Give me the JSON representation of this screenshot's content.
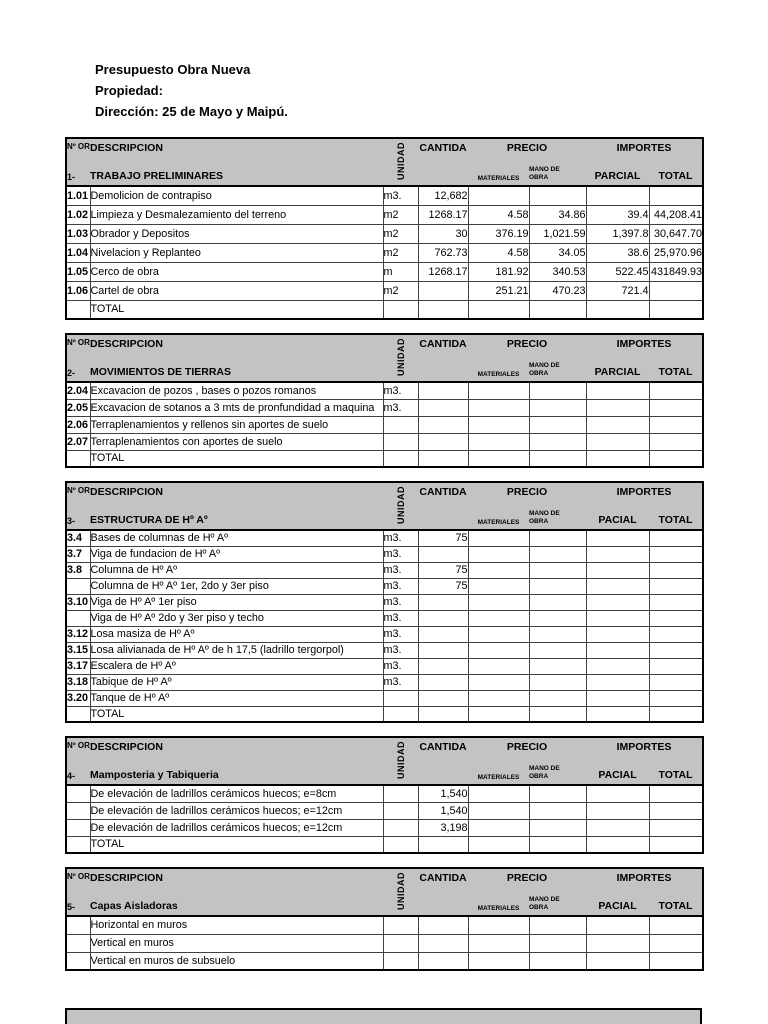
{
  "title_block": {
    "line1": "Presupuesto Obra Nueva",
    "line2": "Propiedad:",
    "line3": "Dirección: 25 de Mayo y Maipú."
  },
  "header_labels": {
    "num_order": "Nº OR",
    "descripcion": "DESCRIPCION",
    "unidad": "UNIDAD",
    "cantida": "CANTIDA",
    "precio": "PRECIO",
    "importes": "IMPORTES",
    "materiales": "MATERIALES",
    "mano_de_obra": "MANO DE OBRA",
    "total": "TOTAL"
  },
  "colors": {
    "header_bg": "#c3c3c3",
    "grid": "#404040",
    "edge": "#000000",
    "page_bg": "#ffffff"
  },
  "tables": [
    {
      "section_num": "1-",
      "section_title": "TRABAJO PRELIMINARES",
      "parcial_label": "PARCIAL",
      "rows": [
        [
          "1.01",
          "Demolicion de contrapiso",
          "m3.",
          "12,682",
          "",
          "",
          "",
          ""
        ],
        [
          "1.02",
          "Limpieza y Desmalezamiento del terreno",
          "m2",
          "1268.17",
          "4.58",
          "34.86",
          "39.4",
          "44,208.41"
        ],
        [
          "1.03",
          "Obrador y Depositos",
          "m2",
          "30",
          "376.19",
          "1,021.59",
          "1,397.8",
          "30,647.70"
        ],
        [
          "1.04",
          "Nivelacion y Replanteo",
          "m2",
          "762.73",
          "4.58",
          "34.05",
          "38.6",
          "25,970.96"
        ],
        [
          "1.05",
          "Cerco de obra",
          "m",
          "1268.17",
          "181.92",
          "340.53",
          "522.45",
          "431849.93"
        ],
        [
          "1.06",
          "Cartel de obra",
          "m2",
          "",
          "251.21",
          "470.23",
          "721.4",
          ""
        ],
        [
          "",
          "TOTAL",
          "",
          "",
          "",
          "",
          "",
          ""
        ]
      ]
    },
    {
      "section_num": "2-",
      "section_title": "MOVIMIENTOS DE TIERRAS",
      "parcial_label": "PARCIAL",
      "rows": [
        [
          "2.04",
          "Excavacion de pozos , bases o pozos romanos",
          "m3.",
          "",
          "",
          "",
          "",
          ""
        ],
        [
          "2.05",
          "Excavacion de sotanos a 3 mts de pronfundidad a maquina",
          "m3.",
          "",
          "",
          "",
          "",
          ""
        ],
        [
          "2.06",
          "Terraplenamientos y rellenos sin aportes de suelo",
          "",
          "",
          "",
          "",
          "",
          ""
        ],
        [
          "2.07",
          "Terraplenamientos con aportes de suelo",
          "",
          "",
          "",
          "",
          "",
          ""
        ],
        [
          "",
          "TOTAL",
          "",
          "",
          "",
          "",
          "",
          ""
        ]
      ]
    },
    {
      "section_num": "3-",
      "section_title": "ESTRUCTURA DE Hº Aº",
      "parcial_label": "PACIAL",
      "rows": [
        [
          "3.4",
          "Bases de columnas de Hº Aº",
          "m3.",
          "75",
          "",
          "",
          "",
          ""
        ],
        [
          "3.7",
          "Viga de fundacion de Hº Aº",
          "m3.",
          "",
          "",
          "",
          "",
          ""
        ],
        [
          "3.8",
          "Columna de Hº Aº",
          "m3.",
          "75",
          "",
          "",
          "",
          ""
        ],
        [
          "",
          "Columna de Hº Aº 1er, 2do y 3er piso",
          "m3.",
          "75",
          "",
          "",
          "",
          ""
        ],
        [
          "3.10",
          "Viga de Hº Aº 1er piso",
          "m3.",
          "",
          "",
          "",
          "",
          ""
        ],
        [
          "",
          "Viga de Hº Aº 2do y 3er piso y techo",
          "m3.",
          "",
          "",
          "",
          "",
          ""
        ],
        [
          "3.12",
          "Losa masiza de Hº Aº",
          "m3.",
          "",
          "",
          "",
          "",
          ""
        ],
        [
          "3.15",
          "Losa alivianada de Hº Aº de h 17,5 (ladrillo tergorpol)",
          "m3.",
          "",
          "",
          "",
          "",
          ""
        ],
        [
          "3.17",
          "Escalera de Hº Aº",
          "m3.",
          "",
          "",
          "",
          "",
          ""
        ],
        [
          "3.18",
          "Tabique de Hº Aº",
          "m3.",
          "",
          "",
          "",
          "",
          ""
        ],
        [
          "3.20",
          "Tanque de Hº Aº",
          "",
          "",
          "",
          "",
          "",
          ""
        ],
        [
          "",
          "TOTAL",
          "",
          "",
          "",
          "",
          "",
          ""
        ]
      ]
    },
    {
      "section_num": "4-",
      "section_title": "Mamposteria y Tabiqueria",
      "parcial_label": "PACIAL",
      "rows": [
        [
          "",
          "De elevación de ladrillos cerámicos huecos; e=8cm",
          "",
          "1,540",
          "",
          "",
          "",
          ""
        ],
        [
          "",
          "De elevación de ladrillos cerámicos huecos; e=12cm",
          "",
          "1,540",
          "",
          "",
          "",
          ""
        ],
        [
          "",
          "De elevación de ladrillos cerámicos huecos; e=12cm",
          "",
          "3,198",
          "",
          "",
          "",
          ""
        ],
        [
          "",
          "TOTAL",
          "",
          "",
          "",
          "",
          "",
          ""
        ]
      ]
    },
    {
      "section_num": "5-",
      "section_title": "Capas Aisladoras",
      "parcial_label": "PACIAL",
      "rows": [
        [
          "",
          "Horizontal en muros",
          "",
          "",
          "",
          "",
          "",
          ""
        ],
        [
          "",
          "Vertical en muros",
          "",
          "",
          "",
          "",
          "",
          ""
        ],
        [
          "",
          "Vertical en muros de subsuelo",
          "",
          "",
          "",
          "",
          "",
          ""
        ]
      ]
    }
  ]
}
